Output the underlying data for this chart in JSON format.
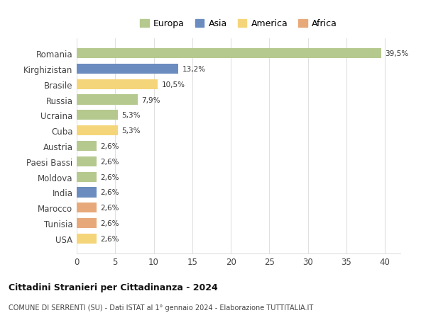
{
  "categories": [
    "Romania",
    "Kirghizistan",
    "Brasile",
    "Russia",
    "Ucraina",
    "Cuba",
    "Austria",
    "Paesi Bassi",
    "Moldova",
    "India",
    "Marocco",
    "Tunisia",
    "USA"
  ],
  "values": [
    39.5,
    13.2,
    10.5,
    7.9,
    5.3,
    5.3,
    2.6,
    2.6,
    2.6,
    2.6,
    2.6,
    2.6,
    2.6
  ],
  "labels": [
    "39,5%",
    "13,2%",
    "10,5%",
    "7,9%",
    "5,3%",
    "5,3%",
    "2,6%",
    "2,6%",
    "2,6%",
    "2,6%",
    "2,6%",
    "2,6%",
    "2,6%"
  ],
  "continents": [
    "Europa",
    "Asia",
    "America",
    "Europa",
    "Europa",
    "America",
    "Europa",
    "Europa",
    "Europa",
    "Asia",
    "Africa",
    "Africa",
    "America"
  ],
  "colors": {
    "Europa": "#b5c98e",
    "Asia": "#6b8cbf",
    "America": "#f5d57a",
    "Africa": "#e8a97a"
  },
  "xlim": [
    0,
    42
  ],
  "xticks": [
    0,
    5,
    10,
    15,
    20,
    25,
    30,
    35,
    40
  ],
  "title1": "Cittadini Stranieri per Cittadinanza - 2024",
  "title2": "COMUNE DI SERRENTI (SU) - Dati ISTAT al 1° gennaio 2024 - Elaborazione TUTTITALIA.IT",
  "background_color": "#ffffff",
  "grid_color": "#e0e0e0",
  "bar_height": 0.65,
  "legend_order": [
    "Europa",
    "Asia",
    "America",
    "Africa"
  ]
}
